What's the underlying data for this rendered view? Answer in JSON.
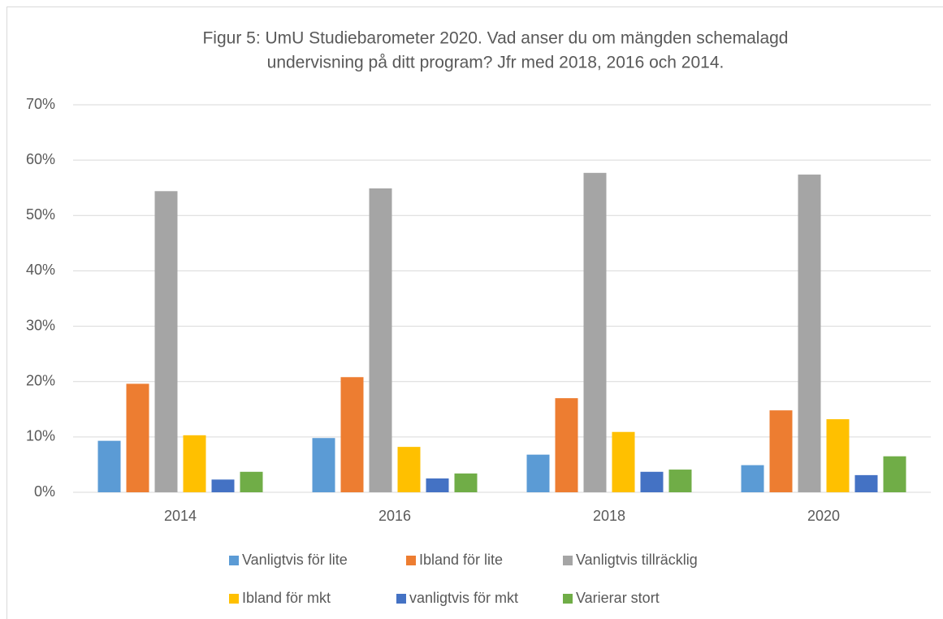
{
  "chart_data": {
    "type": "bar",
    "title": [
      "Figur 5: UmU Studiebarometer 2020. Vad anser du om mängden schemalagd",
      "undervisning på ditt program? Jfr med 2018, 2016 och 2014."
    ],
    "categories": [
      "2014",
      "2016",
      "2018",
      "2020"
    ],
    "series": [
      {
        "name": "Vanligtvis för lite",
        "color": "#5b9bd5",
        "values": [
          9.3,
          9.8,
          6.8,
          4.9
        ]
      },
      {
        "name": "Ibland för lite",
        "color": "#ed7d31",
        "values": [
          19.6,
          20.8,
          17.0,
          14.8
        ]
      },
      {
        "name": "Vanligtvis tillräcklig",
        "color": "#a5a5a5",
        "values": [
          54.4,
          54.9,
          57.7,
          57.4
        ]
      },
      {
        "name": "Ibland för mkt",
        "color": "#ffc000",
        "values": [
          10.3,
          8.2,
          10.9,
          13.2
        ]
      },
      {
        "name": "vanligtvis för mkt",
        "color": "#4472c4",
        "values": [
          2.3,
          2.5,
          3.7,
          3.1
        ]
      },
      {
        "name": "Varierar stort",
        "color": "#70ad47",
        "values": [
          3.7,
          3.4,
          4.1,
          6.5
        ]
      }
    ],
    "ylim": [
      0,
      70
    ],
    "yticks": [
      {
        "value": 0,
        "label": "0%"
      },
      {
        "value": 10,
        "label": "10%"
      },
      {
        "value": 20,
        "label": "20%"
      },
      {
        "value": 30,
        "label": "30%"
      },
      {
        "value": 40,
        "label": "40%"
      },
      {
        "value": 50,
        "label": "50%"
      },
      {
        "value": 60,
        "label": "60%"
      },
      {
        "value": 70,
        "label": "70%"
      }
    ],
    "grid": true,
    "legend": "bottom"
  }
}
